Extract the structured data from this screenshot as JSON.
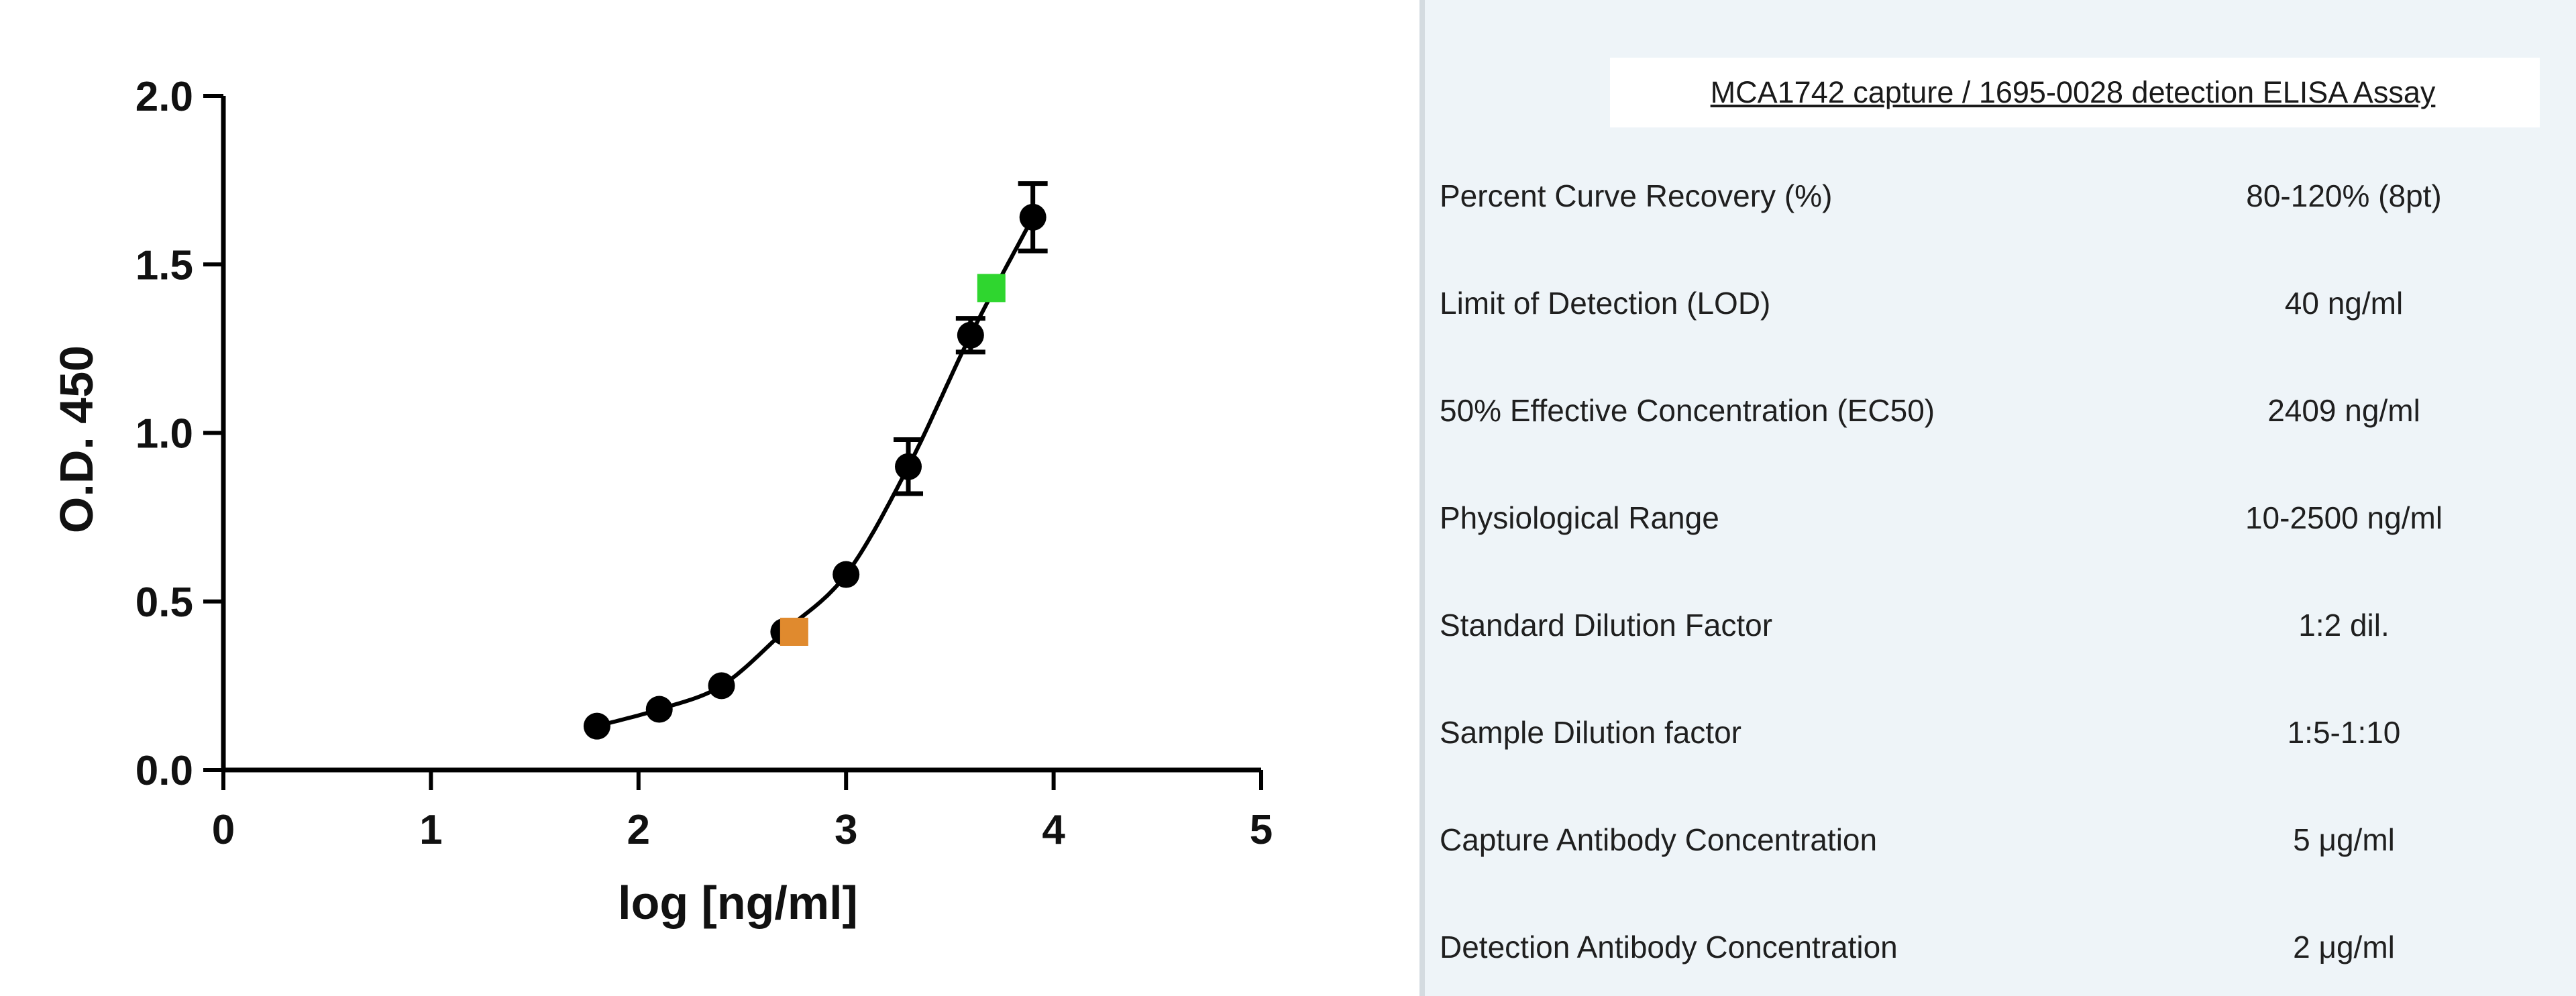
{
  "chart_data": {
    "type": "scatter",
    "xlabel": "log [ng/ml]",
    "ylabel": "O.D. 450",
    "xlim": [
      0,
      5
    ],
    "ylim": [
      0,
      2
    ],
    "x_ticks": [
      "0",
      "1",
      "2",
      "3",
      "4",
      "5"
    ],
    "y_ticks": [
      "0.0",
      "0.5",
      "1.0",
      "1.5",
      "2.0"
    ],
    "grid": false,
    "fit_curve": "sigmoidal",
    "series": [
      {
        "marker": "circle",
        "color": "#000000",
        "x": [
          1.8,
          2.1,
          2.4,
          2.7,
          3.0,
          3.3,
          3.6,
          3.9
        ],
        "y": [
          0.13,
          0.18,
          0.25,
          0.41,
          0.58,
          0.9,
          1.29,
          1.64
        ],
        "error": [
          0.01,
          0.01,
          0.01,
          0.01,
          0.01,
          0.08,
          0.05,
          0.1
        ]
      },
      {
        "marker": "square",
        "color": "#e08a2e",
        "x": [
          2.75
        ],
        "y": [
          0.41
        ]
      },
      {
        "marker": "square",
        "color": "#2fd62f",
        "x": [
          3.7
        ],
        "y": [
          1.43
        ]
      }
    ]
  },
  "table": {
    "title": "MCA1742 capture / 1695-0028 detection ELISA Assay",
    "rows": [
      {
        "label": "Percent Curve Recovery (%)",
        "value": "80-120% (8pt)"
      },
      {
        "label": "Limit of Detection (LOD)",
        "value": "40 ng/ml"
      },
      {
        "label": "50% Effective Concentration (EC50)",
        "value": "2409 ng/ml"
      },
      {
        "label": "Physiological Range",
        "value": "10-2500 ng/ml"
      },
      {
        "label": "Standard Dilution Factor",
        "value": "1:2 dil."
      },
      {
        "label": "Sample Dilution factor",
        "value": "1:5-1:10"
      },
      {
        "label": "Capture Antibody Concentration",
        "value": "5 μg/ml"
      },
      {
        "label": "Detection Antibody Concentration",
        "value": "2 μg/ml"
      }
    ]
  }
}
